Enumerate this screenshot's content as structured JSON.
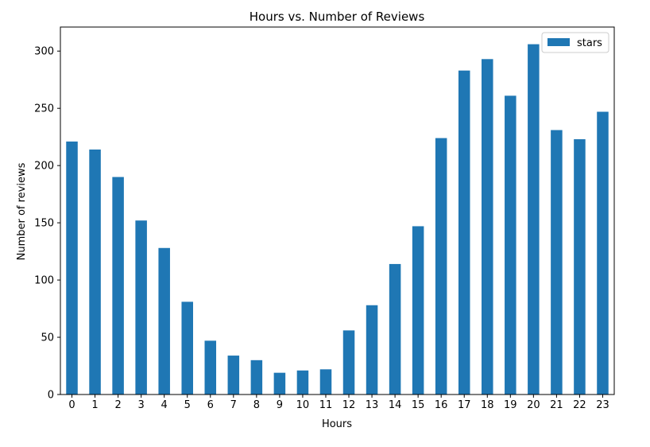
{
  "chart_data": {
    "type": "bar",
    "title": "Hours vs. Number of Reviews",
    "xlabel": "Hours",
    "ylabel": "Number of reviews",
    "categories": [
      "0",
      "1",
      "2",
      "3",
      "4",
      "5",
      "6",
      "7",
      "8",
      "9",
      "10",
      "11",
      "12",
      "13",
      "14",
      "15",
      "16",
      "17",
      "18",
      "19",
      "20",
      "21",
      "22",
      "23"
    ],
    "series": [
      {
        "name": "stars",
        "color": "#1f77b4",
        "values": [
          221,
          214,
          190,
          152,
          128,
          81,
          47,
          34,
          30,
          19,
          21,
          22,
          56,
          78,
          114,
          147,
          224,
          283,
          293,
          261,
          306,
          231,
          223,
          247
        ]
      }
    ],
    "ylim": [
      0,
      321
    ],
    "yticks": [
      0,
      50,
      100,
      150,
      200,
      250,
      300
    ],
    "grid": false,
    "legend": "top-right"
  }
}
